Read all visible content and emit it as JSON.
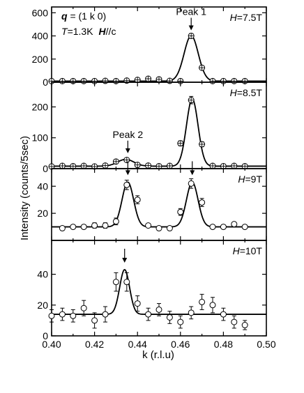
{
  "chart_data": {
    "type": "scatter",
    "xlabel": "k (r.l.u)",
    "ylabel": "Intensity (counts/5sec)",
    "xlim": [
      0.4,
      0.5
    ],
    "x_ticks": [
      "0.40",
      "0.42",
      "0.44",
      "0.46",
      "0.48",
      "0.50"
    ],
    "header": {
      "q_label": "q",
      "q_value": " = (1 k 0)",
      "T_label": "T",
      "T_value": "=1.3K",
      "Hc_label": "H",
      "Hc_value": "//c"
    },
    "panels": [
      {
        "field_label": "H",
        "field_value": "=7.5T",
        "ylim": [
          0,
          650
        ],
        "y_ticks": [
          "0",
          "200",
          "400",
          "600"
        ],
        "marker": "circle-cross",
        "peak_labels": [
          {
            "text": "Peak 1",
            "x": 0.465,
            "y_value": 400
          }
        ],
        "fit": {
          "baseline": 10,
          "peaks": [
            {
              "center": 0.465,
              "amp": 392,
              "sigma": 0.0033
            }
          ]
        },
        "points": [
          {
            "x": 0.4,
            "y": 10,
            "err": 8
          },
          {
            "x": 0.405,
            "y": 10,
            "err": 8
          },
          {
            "x": 0.41,
            "y": 10,
            "err": 8
          },
          {
            "x": 0.415,
            "y": 10,
            "err": 8
          },
          {
            "x": 0.42,
            "y": 10,
            "err": 8
          },
          {
            "x": 0.425,
            "y": 12,
            "err": 8
          },
          {
            "x": 0.43,
            "y": 10,
            "err": 8
          },
          {
            "x": 0.435,
            "y": 14,
            "err": 8
          },
          {
            "x": 0.44,
            "y": 20,
            "err": 8
          },
          {
            "x": 0.445,
            "y": 30,
            "err": 8
          },
          {
            "x": 0.45,
            "y": 25,
            "err": 8
          },
          {
            "x": 0.455,
            "y": 12,
            "err": 8
          },
          {
            "x": 0.46,
            "y": 10,
            "err": 8
          },
          {
            "x": 0.465,
            "y": 400,
            "err": 20
          },
          {
            "x": 0.47,
            "y": 125,
            "err": 12
          },
          {
            "x": 0.475,
            "y": 10,
            "err": 8
          },
          {
            "x": 0.48,
            "y": 10,
            "err": 8
          },
          {
            "x": 0.485,
            "y": 10,
            "err": 8
          },
          {
            "x": 0.49,
            "y": 10,
            "err": 8
          }
        ]
      },
      {
        "field_label": "H",
        "field_value": "=8.5T",
        "ylim": [
          0,
          280
        ],
        "y_ticks": [
          "0",
          "100",
          "200"
        ],
        "marker": "circle-cross",
        "peak_labels": [
          {
            "text": "Peak 2",
            "x": 0.4355,
            "y_value": 32
          }
        ],
        "fit": {
          "baseline": 8,
          "peaks": [
            {
              "center": 0.4345,
              "amp": 22,
              "sigma": 0.0038
            },
            {
              "center": 0.4655,
              "amp": 218,
              "sigma": 0.0027
            }
          ]
        },
        "points": [
          {
            "x": 0.4,
            "y": 7,
            "err": 4
          },
          {
            "x": 0.405,
            "y": 9,
            "err": 4
          },
          {
            "x": 0.41,
            "y": 8,
            "err": 4
          },
          {
            "x": 0.415,
            "y": 9,
            "err": 4
          },
          {
            "x": 0.42,
            "y": 7,
            "err": 4
          },
          {
            "x": 0.425,
            "y": 10,
            "err": 4
          },
          {
            "x": 0.43,
            "y": 23,
            "err": 5
          },
          {
            "x": 0.435,
            "y": 28,
            "err": 5
          },
          {
            "x": 0.44,
            "y": 12,
            "err": 4
          },
          {
            "x": 0.445,
            "y": 10,
            "err": 4
          },
          {
            "x": 0.45,
            "y": 8,
            "err": 4
          },
          {
            "x": 0.455,
            "y": 9,
            "err": 4
          },
          {
            "x": 0.46,
            "y": 82,
            "err": 8
          },
          {
            "x": 0.465,
            "y": 222,
            "err": 12
          },
          {
            "x": 0.47,
            "y": 79,
            "err": 8
          },
          {
            "x": 0.475,
            "y": 9,
            "err": 4
          },
          {
            "x": 0.48,
            "y": 8,
            "err": 4
          },
          {
            "x": 0.485,
            "y": 9,
            "err": 4
          },
          {
            "x": 0.49,
            "y": 8,
            "err": 4
          }
        ]
      },
      {
        "field_label": "H",
        "field_value": "=9T",
        "ylim": [
          0,
          53
        ],
        "y_ticks": [
          "20",
          "40"
        ],
        "marker": "circle",
        "peak_labels": [],
        "arrows_x": [
          0.4355,
          0.4655
        ],
        "fit": {
          "baseline": 10,
          "peaks": [
            {
              "center": 0.4355,
              "amp": 33,
              "sigma": 0.0027
            },
            {
              "center": 0.4655,
              "amp": 33,
              "sigma": 0.0027
            }
          ]
        },
        "points": [
          {
            "x": 0.405,
            "y": 9,
            "err": 1
          },
          {
            "x": 0.41,
            "y": 10,
            "err": 1
          },
          {
            "x": 0.415,
            "y": 10,
            "err": 1
          },
          {
            "x": 0.42,
            "y": 11,
            "err": 2
          },
          {
            "x": 0.425,
            "y": 11,
            "err": 2
          },
          {
            "x": 0.43,
            "y": 14,
            "err": 2.5
          },
          {
            "x": 0.435,
            "y": 41,
            "err": 3.5
          },
          {
            "x": 0.44,
            "y": 30,
            "err": 3
          },
          {
            "x": 0.445,
            "y": 11,
            "err": 1.5
          },
          {
            "x": 0.45,
            "y": 9,
            "err": 1
          },
          {
            "x": 0.455,
            "y": 9,
            "err": 1
          },
          {
            "x": 0.46,
            "y": 21,
            "err": 2.5
          },
          {
            "x": 0.465,
            "y": 42,
            "err": 3.5
          },
          {
            "x": 0.47,
            "y": 28,
            "err": 3
          },
          {
            "x": 0.475,
            "y": 10,
            "err": 1.5
          },
          {
            "x": 0.48,
            "y": 10,
            "err": 1
          },
          {
            "x": 0.485,
            "y": 12,
            "err": 1.5
          },
          {
            "x": 0.49,
            "y": 10,
            "err": 1
          }
        ]
      },
      {
        "field_label": "H",
        "field_value": "=10T",
        "ylim": [
          0,
          62
        ],
        "y_ticks": [
          "0",
          "20",
          "40"
        ],
        "marker": "circle",
        "peak_labels": [],
        "arrows_x": [
          0.434
        ],
        "fit": {
          "baseline": 14,
          "peaks": [
            {
              "center": 0.434,
              "amp": 29,
              "sigma": 0.0023
            }
          ]
        },
        "points": [
          {
            "x": 0.4,
            "y": 13,
            "err": 4
          },
          {
            "x": 0.405,
            "y": 14,
            "err": 4
          },
          {
            "x": 0.41,
            "y": 13,
            "err": 4
          },
          {
            "x": 0.415,
            "y": 18,
            "err": 5
          },
          {
            "x": 0.42,
            "y": 10,
            "err": 5
          },
          {
            "x": 0.425,
            "y": 14,
            "err": 5
          },
          {
            "x": 0.43,
            "y": 35,
            "err": 6
          },
          {
            "x": 0.435,
            "y": 35,
            "err": 6
          },
          {
            "x": 0.44,
            "y": 21,
            "err": 5
          },
          {
            "x": 0.445,
            "y": 14,
            "err": 4
          },
          {
            "x": 0.45,
            "y": 17,
            "err": 4
          },
          {
            "x": 0.455,
            "y": 12,
            "err": 4
          },
          {
            "x": 0.46,
            "y": 9,
            "err": 4
          },
          {
            "x": 0.465,
            "y": 15,
            "err": 4
          },
          {
            "x": 0.47,
            "y": 22,
            "err": 5
          },
          {
            "x": 0.475,
            "y": 20,
            "err": 5
          },
          {
            "x": 0.48,
            "y": 14,
            "err": 4
          },
          {
            "x": 0.485,
            "y": 9,
            "err": 4
          },
          {
            "x": 0.49,
            "y": 7,
            "err": 3
          }
        ]
      }
    ]
  }
}
